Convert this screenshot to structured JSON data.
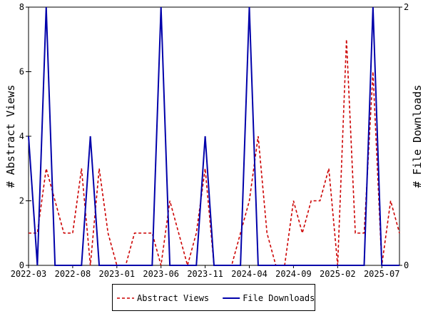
{
  "chart_data": {
    "type": "line",
    "xlabel": "",
    "ylabel": "# Abstract Views",
    "y2label": "# File Downloads",
    "ylim": [
      0,
      8
    ],
    "y2lim": [
      0,
      2
    ],
    "yticks": [
      "0",
      "2",
      "4",
      "6",
      "8"
    ],
    "y2ticks": [
      "0",
      "2"
    ],
    "xticks": [
      "2022-03",
      "2022-08",
      "2023-01",
      "2023-06",
      "2023-11",
      "2024-04",
      "2024-09",
      "2025-02",
      "2025-07"
    ],
    "x": [
      "2022-03",
      "2022-04",
      "2022-05",
      "2022-06",
      "2022-07",
      "2022-08",
      "2022-09",
      "2022-10",
      "2022-11",
      "2022-12",
      "2023-01",
      "2023-02",
      "2023-03",
      "2023-04",
      "2023-05",
      "2023-06",
      "2023-07",
      "2023-08",
      "2023-09",
      "2023-10",
      "2023-11",
      "2023-12",
      "2024-01",
      "2024-02",
      "2024-03",
      "2024-04",
      "2024-05",
      "2024-06",
      "2024-07",
      "2024-08",
      "2024-09",
      "2024-10",
      "2024-11",
      "2024-12",
      "2025-01",
      "2025-02",
      "2025-03",
      "2025-04",
      "2025-05",
      "2025-06",
      "2025-07",
      "2025-08",
      "2025-09"
    ],
    "series": [
      {
        "name": "Abstract Views",
        "axis": "left",
        "color": "#cc0000",
        "dash": true,
        "values": [
          1,
          1,
          3,
          2,
          1,
          1,
          3,
          0,
          3,
          1,
          0,
          0,
          1,
          1,
          1,
          0,
          2,
          1,
          0,
          1,
          3,
          0,
          0,
          0,
          1,
          2,
          4,
          1,
          0,
          0,
          2,
          1,
          2,
          2,
          3,
          0,
          7,
          1,
          1,
          6,
          0,
          2,
          1
        ]
      },
      {
        "name": "File Downloads",
        "axis": "right",
        "color": "#0000aa",
        "dash": false,
        "values": [
          1,
          0,
          2,
          0,
          0,
          0,
          0,
          1,
          0,
          0,
          0,
          0,
          0,
          0,
          0,
          2,
          0,
          0,
          0,
          0,
          1,
          0,
          0,
          0,
          0,
          2,
          0,
          0,
          0,
          0,
          0,
          0,
          0,
          0,
          0,
          0,
          0,
          0,
          0,
          2,
          0,
          0,
          0
        ]
      }
    ],
    "legend": "bottom-center",
    "grid": false
  }
}
